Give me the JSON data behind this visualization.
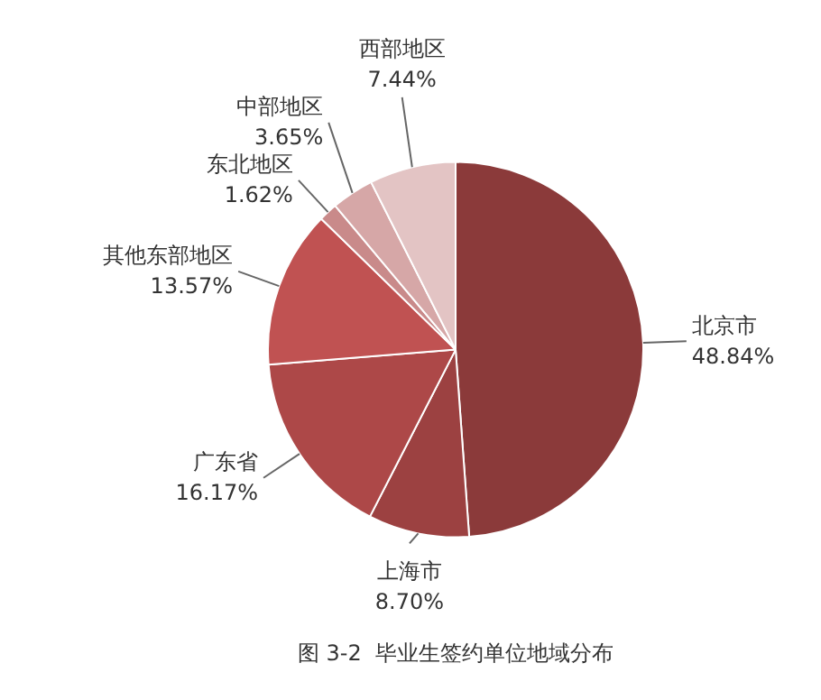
{
  "chart_data": {
    "type": "pie",
    "title": "图 3-2  毕业生签约单位地域分布",
    "categories": [
      "北京市",
      "上海市",
      "广东省",
      "其他东部地区",
      "东北地区",
      "中部地区",
      "西部地区"
    ],
    "values": [
      48.84,
      8.7,
      16.17,
      13.57,
      1.62,
      3.65,
      7.44
    ],
    "value_labels": [
      "48.84%",
      "8.70%",
      "16.17%",
      "13.57%",
      "1.62%",
      "3.65%",
      "7.44%"
    ],
    "colors": [
      "#8b3a3a",
      "#9c4141",
      "#ad4848",
      "#c05252",
      "#c98a8a",
      "#d6a7a7",
      "#e3c4c4"
    ],
    "legend": false
  }
}
